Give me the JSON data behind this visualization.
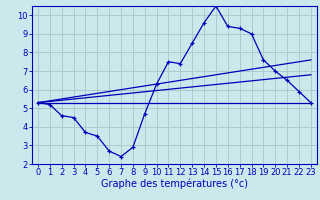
{
  "title": "Graphe des températures (°c)",
  "bg_color": "#cce8ec",
  "grid_color": "#aacccc",
  "line_color": "#0000bb",
  "spine_color": "#0000bb",
  "xlim": [
    -0.5,
    23.5
  ],
  "ylim": [
    2,
    10.5
  ],
  "xticks": [
    0,
    1,
    2,
    3,
    4,
    5,
    6,
    7,
    8,
    9,
    10,
    11,
    12,
    13,
    14,
    15,
    16,
    17,
    18,
    19,
    20,
    21,
    22,
    23
  ],
  "yticks": [
    2,
    3,
    4,
    5,
    6,
    7,
    8,
    9,
    10
  ],
  "temp_x": [
    0,
    1,
    2,
    3,
    4,
    5,
    6,
    7,
    8,
    9,
    10,
    11,
    12,
    13,
    14,
    15,
    16,
    17,
    18,
    19,
    20,
    21,
    22,
    23
  ],
  "temp_y": [
    5.3,
    5.2,
    4.6,
    4.5,
    3.7,
    3.5,
    2.7,
    2.4,
    2.9,
    4.7,
    6.3,
    7.5,
    7.4,
    8.5,
    9.6,
    10.5,
    9.4,
    9.3,
    9.0,
    7.6,
    7.0,
    6.5,
    5.9,
    5.3
  ],
  "trend1_x": [
    0,
    23
  ],
  "trend1_y": [
    5.3,
    7.6
  ],
  "trend2_x": [
    0,
    23
  ],
  "trend2_y": [
    5.3,
    6.8
  ],
  "trend3_x": [
    0,
    23
  ],
  "trend3_y": [
    5.3,
    5.3
  ],
  "xlabel_fontsize": 7,
  "tick_fontsize": 6
}
